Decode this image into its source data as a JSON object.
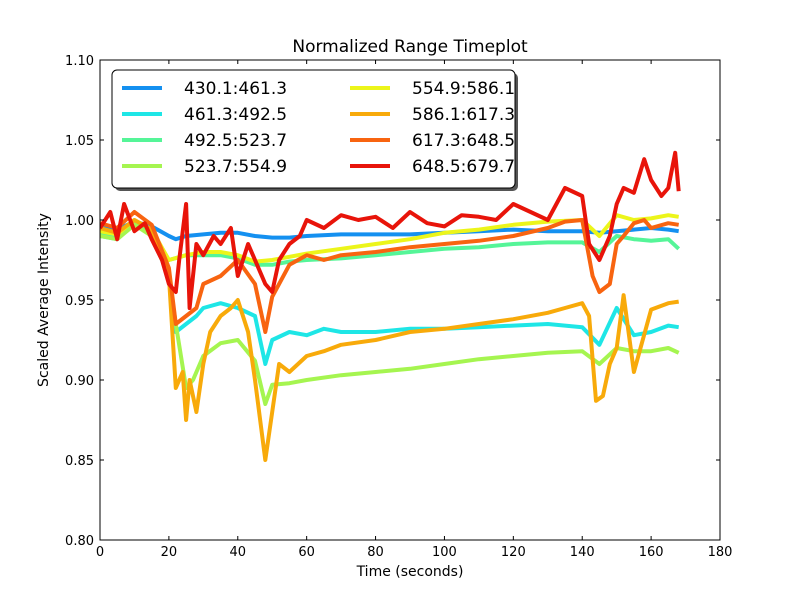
{
  "chart_data": {
    "type": "line",
    "title": "Normalized Range Timeplot",
    "xlabel": "Time (seconds)",
    "ylabel": "Scaled Average Intensity",
    "xlim": [
      0,
      180
    ],
    "ylim": [
      0.8,
      1.1
    ],
    "xticks": [
      0,
      20,
      40,
      60,
      80,
      100,
      120,
      140,
      160,
      180
    ],
    "yticks": [
      0.8,
      0.85,
      0.9,
      0.95,
      1.0,
      1.05,
      1.1
    ],
    "xtick_labels": [
      "0",
      "20",
      "40",
      "60",
      "80",
      "100",
      "120",
      "140",
      "160",
      "180"
    ],
    "ytick_labels": [
      "0.80",
      "0.85",
      "0.90",
      "0.95",
      "1.00",
      "1.05",
      "1.10"
    ],
    "grid": false,
    "legend": {
      "position": "top-left",
      "columns": 2
    },
    "series": [
      {
        "name": "430.1:461.3",
        "color": "#1490f0",
        "x": [
          0,
          5,
          10,
          15,
          20,
          22,
          25,
          30,
          35,
          40,
          45,
          50,
          55,
          60,
          70,
          80,
          90,
          100,
          110,
          120,
          130,
          140,
          145,
          150,
          155,
          160,
          165,
          168
        ],
        "y": [
          0.995,
          0.994,
          0.999,
          0.996,
          0.99,
          0.988,
          0.99,
          0.991,
          0.992,
          0.992,
          0.99,
          0.989,
          0.989,
          0.99,
          0.991,
          0.991,
          0.991,
          0.992,
          0.993,
          0.994,
          0.993,
          0.993,
          0.992,
          0.993,
          0.994,
          0.995,
          0.994,
          0.993
        ]
      },
      {
        "name": "461.3:492.5",
        "color": "#1ee6e6",
        "x": [
          0,
          5,
          10,
          15,
          20,
          22,
          25,
          28,
          30,
          35,
          40,
          45,
          48,
          50,
          55,
          60,
          65,
          70,
          80,
          90,
          100,
          110,
          120,
          130,
          140,
          145,
          150,
          155,
          160,
          165,
          168
        ],
        "y": [
          0.99,
          0.988,
          0.998,
          0.99,
          0.965,
          0.93,
          0.935,
          0.94,
          0.945,
          0.948,
          0.945,
          0.94,
          0.91,
          0.925,
          0.93,
          0.928,
          0.932,
          0.93,
          0.93,
          0.932,
          0.932,
          0.933,
          0.934,
          0.935,
          0.933,
          0.922,
          0.945,
          0.928,
          0.93,
          0.934,
          0.933
        ]
      },
      {
        "name": "492.5:523.7",
        "color": "#55f598",
        "x": [
          0,
          5,
          10,
          15,
          20,
          25,
          30,
          35,
          40,
          45,
          50,
          55,
          60,
          70,
          80,
          90,
          100,
          110,
          120,
          130,
          140,
          145,
          150,
          155,
          160,
          165,
          168
        ],
        "y": [
          0.992,
          0.99,
          0.999,
          0.992,
          0.975,
          0.978,
          0.978,
          0.978,
          0.976,
          0.972,
          0.972,
          0.974,
          0.975,
          0.976,
          0.978,
          0.98,
          0.982,
          0.983,
          0.985,
          0.986,
          0.986,
          0.98,
          0.99,
          0.988,
          0.987,
          0.988,
          0.982
        ]
      },
      {
        "name": "523.7:554.9",
        "color": "#a5f550",
        "x": [
          0,
          5,
          10,
          15,
          20,
          22,
          25,
          27,
          30,
          35,
          40,
          45,
          48,
          50,
          55,
          60,
          70,
          80,
          90,
          100,
          110,
          120,
          130,
          140,
          145,
          150,
          155,
          160,
          165,
          168
        ],
        "y": [
          0.99,
          0.988,
          0.997,
          0.99,
          0.965,
          0.935,
          0.895,
          0.9,
          0.915,
          0.923,
          0.925,
          0.912,
          0.885,
          0.897,
          0.898,
          0.9,
          0.903,
          0.905,
          0.907,
          0.91,
          0.913,
          0.915,
          0.917,
          0.918,
          0.91,
          0.92,
          0.918,
          0.918,
          0.92,
          0.917
        ]
      },
      {
        "name": "554.9:586.1",
        "color": "#ecf51a",
        "x": [
          0,
          5,
          10,
          15,
          20,
          25,
          30,
          35,
          40,
          45,
          50,
          55,
          60,
          70,
          80,
          90,
          100,
          110,
          120,
          130,
          140,
          145,
          150,
          155,
          160,
          165,
          168
        ],
        "y": [
          0.993,
          0.991,
          1.0,
          0.994,
          0.975,
          0.978,
          0.98,
          0.98,
          0.978,
          0.974,
          0.975,
          0.977,
          0.979,
          0.982,
          0.985,
          0.988,
          0.992,
          0.994,
          0.997,
          0.999,
          1.0,
          0.99,
          1.003,
          1.0,
          1.001,
          1.003,
          1.002
        ]
      },
      {
        "name": "586.1:617.3",
        "color": "#f8aa0a",
        "x": [
          0,
          5,
          10,
          15,
          20,
          22,
          24,
          25,
          26,
          28,
          30,
          32,
          35,
          38,
          40,
          43,
          45,
          48,
          50,
          52,
          55,
          60,
          65,
          70,
          80,
          90,
          100,
          110,
          120,
          130,
          135,
          140,
          142,
          144,
          146,
          148,
          150,
          152,
          155,
          160,
          165,
          168
        ],
        "y": [
          0.995,
          0.992,
          1.0,
          0.994,
          0.965,
          0.895,
          0.905,
          0.875,
          0.9,
          0.88,
          0.91,
          0.93,
          0.94,
          0.945,
          0.95,
          0.93,
          0.9,
          0.85,
          0.88,
          0.91,
          0.905,
          0.915,
          0.918,
          0.922,
          0.925,
          0.93,
          0.932,
          0.935,
          0.938,
          0.942,
          0.945,
          0.948,
          0.94,
          0.887,
          0.89,
          0.91,
          0.92,
          0.953,
          0.905,
          0.944,
          0.948,
          0.949
        ]
      },
      {
        "name": "617.3:648.5",
        "color": "#f86410",
        "x": [
          0,
          5,
          10,
          15,
          20,
          22,
          25,
          28,
          30,
          35,
          40,
          45,
          48,
          50,
          55,
          60,
          65,
          70,
          80,
          90,
          100,
          110,
          120,
          130,
          135,
          140,
          143,
          145,
          148,
          150,
          152,
          155,
          158,
          160,
          165,
          168
        ],
        "y": [
          0.998,
          0.995,
          1.005,
          0.997,
          0.97,
          0.935,
          0.94,
          0.945,
          0.96,
          0.965,
          0.975,
          0.96,
          0.93,
          0.952,
          0.972,
          0.978,
          0.975,
          0.978,
          0.98,
          0.983,
          0.985,
          0.987,
          0.99,
          0.995,
          0.999,
          1.0,
          0.965,
          0.955,
          0.96,
          0.985,
          0.99,
          0.998,
          1.0,
          0.995,
          0.998,
          0.997
        ]
      },
      {
        "name": "648.5:679.7",
        "color": "#e8140a",
        "x": [
          0,
          3,
          5,
          7,
          10,
          13,
          15,
          18,
          20,
          22,
          23,
          25,
          26,
          28,
          30,
          33,
          35,
          38,
          40,
          43,
          45,
          48,
          50,
          52,
          55,
          58,
          60,
          65,
          70,
          75,
          80,
          85,
          90,
          95,
          100,
          105,
          110,
          115,
          120,
          125,
          130,
          135,
          140,
          142,
          145,
          148,
          150,
          152,
          155,
          158,
          160,
          163,
          165,
          167,
          168
        ],
        "y": [
          0.995,
          1.005,
          0.988,
          1.01,
          0.993,
          0.998,
          0.988,
          0.975,
          0.96,
          0.955,
          0.975,
          1.01,
          0.945,
          0.985,
          0.978,
          0.99,
          0.985,
          0.995,
          0.965,
          0.985,
          0.975,
          0.96,
          0.955,
          0.975,
          0.985,
          0.99,
          1.0,
          0.995,
          1.003,
          1.0,
          1.002,
          0.995,
          1.005,
          0.998,
          0.996,
          1.003,
          1.002,
          1.0,
          1.01,
          1.005,
          1.0,
          1.02,
          1.015,
          0.985,
          0.975,
          0.99,
          1.01,
          1.02,
          1.017,
          1.038,
          1.025,
          1.015,
          1.02,
          1.042,
          1.018
        ]
      }
    ]
  }
}
